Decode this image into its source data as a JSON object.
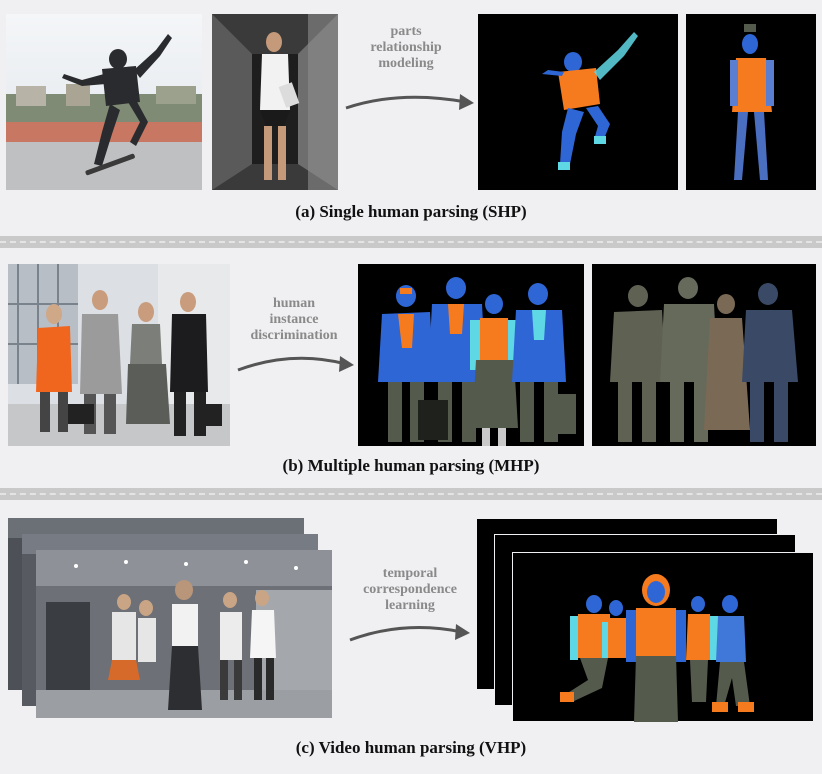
{
  "sections": [
    {
      "caption": "(a) Single human parsing (SHP)",
      "arrow_label": [
        "parts",
        "relationship",
        "modeling"
      ]
    },
    {
      "caption": "(b) Multiple human parsing (MHP)",
      "arrow_label": [
        "human",
        "instance",
        "discrimination"
      ]
    },
    {
      "caption": "(c) Video human parsing (VHP)",
      "arrow_label": [
        "temporal",
        "correspondence",
        "learning"
      ]
    }
  ],
  "colors": {
    "orange": "#f57b1e",
    "blue": "#2f66d6",
    "light_blue": "#5fd8e6",
    "olive": "#545a4c",
    "dark_bg": "#000000",
    "caption_text": "#111111",
    "arrow_text": "#8a8a8a"
  }
}
